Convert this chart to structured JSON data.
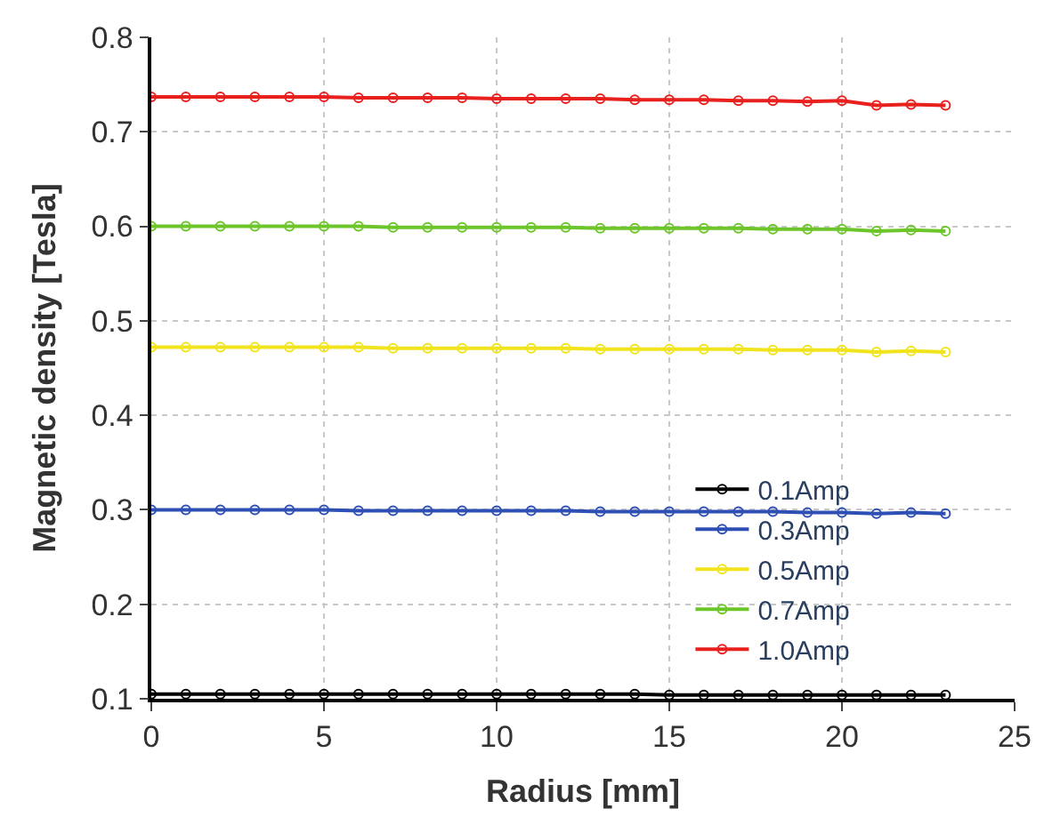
{
  "chart_data": {
    "type": "line",
    "xlabel": "Radius [mm]",
    "ylabel": "Magnetic density [Tesla]",
    "x": [
      0,
      1,
      2,
      3,
      4,
      5,
      6,
      7,
      8,
      9,
      10,
      11,
      12,
      13,
      14,
      15,
      16,
      17,
      18,
      19,
      20,
      21,
      22,
      23
    ],
    "series": [
      {
        "name": "0.1Amp",
        "color": "#000000",
        "values": [
          0.105,
          0.105,
          0.105,
          0.105,
          0.105,
          0.105,
          0.105,
          0.105,
          0.105,
          0.105,
          0.105,
          0.105,
          0.105,
          0.105,
          0.105,
          0.104,
          0.104,
          0.104,
          0.104,
          0.104,
          0.104,
          0.104,
          0.104,
          0.104
        ]
      },
      {
        "name": "0.3Amp",
        "color": "#2e4fb4",
        "values": [
          0.3,
          0.3,
          0.3,
          0.3,
          0.3,
          0.3,
          0.299,
          0.299,
          0.299,
          0.299,
          0.299,
          0.299,
          0.299,
          0.298,
          0.298,
          0.298,
          0.298,
          0.298,
          0.298,
          0.297,
          0.297,
          0.296,
          0.297,
          0.296
        ]
      },
      {
        "name": "0.5Amp",
        "color": "#f2e41c",
        "values": [
          0.472,
          0.472,
          0.472,
          0.472,
          0.472,
          0.472,
          0.472,
          0.471,
          0.471,
          0.471,
          0.471,
          0.471,
          0.471,
          0.47,
          0.47,
          0.47,
          0.47,
          0.47,
          0.469,
          0.469,
          0.469,
          0.467,
          0.468,
          0.467
        ]
      },
      {
        "name": "0.7Amp",
        "color": "#6cc62a",
        "values": [
          0.6,
          0.6,
          0.6,
          0.6,
          0.6,
          0.6,
          0.6,
          0.599,
          0.599,
          0.599,
          0.599,
          0.599,
          0.599,
          0.598,
          0.598,
          0.598,
          0.598,
          0.598,
          0.597,
          0.597,
          0.597,
          0.595,
          0.596,
          0.595
        ]
      },
      {
        "name": "1.0Amp",
        "color": "#e8201e",
        "values": [
          0.737,
          0.737,
          0.737,
          0.737,
          0.737,
          0.737,
          0.736,
          0.736,
          0.736,
          0.736,
          0.735,
          0.735,
          0.735,
          0.735,
          0.734,
          0.734,
          0.734,
          0.733,
          0.733,
          0.732,
          0.733,
          0.728,
          0.729,
          0.728
        ]
      }
    ],
    "xlim": [
      0,
      25
    ],
    "xticks": [
      0,
      5,
      10,
      15,
      20,
      25
    ],
    "ylim": [
      0.1,
      0.8
    ],
    "yticks": [
      0.1,
      0.2,
      0.3,
      0.4,
      0.5,
      0.6,
      0.7,
      0.8
    ],
    "grid": true,
    "legend": "bottom right",
    "marker": "circle",
    "line_style": "solid"
  }
}
